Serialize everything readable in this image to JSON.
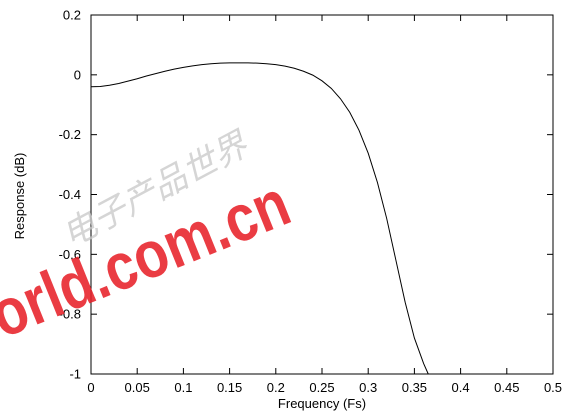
{
  "chart_data": {
    "type": "line",
    "title": "",
    "xlabel": "Frequency (Fs)",
    "ylabel": "Response (dB)",
    "xlim": [
      0,
      0.5
    ],
    "ylim": [
      -1,
      0.2
    ],
    "xticks": [
      0,
      0.05,
      0.1,
      0.15,
      0.2,
      0.25,
      0.3,
      0.35,
      0.4,
      0.45,
      0.5
    ],
    "xtick_labels": [
      "0",
      "0.05",
      "0.1",
      "0.15",
      "0.2",
      "0.25",
      "0.3",
      "0.35",
      "0.4",
      "0.45",
      "0.5"
    ],
    "yticks": [
      -1,
      -0.8,
      -0.6,
      -0.4,
      -0.2,
      0,
      0.2
    ],
    "ytick_labels": [
      "-1",
      "-0.8",
      "-0.6",
      "-0.4",
      "-0.2",
      "0",
      "0.2"
    ],
    "grid": false,
    "legend": "none",
    "line_color": "#000000",
    "series": [
      {
        "x": [
          0,
          0.01,
          0.02,
          0.03,
          0.04,
          0.05,
          0.06,
          0.07,
          0.08,
          0.09,
          0.1,
          0.11,
          0.12,
          0.13,
          0.14,
          0.15,
          0.16,
          0.17,
          0.18,
          0.19,
          0.2,
          0.21,
          0.22,
          0.23,
          0.24,
          0.25,
          0.26,
          0.27,
          0.28,
          0.29,
          0.3,
          0.31,
          0.32,
          0.33,
          0.34,
          0.35,
          0.36,
          0.365
        ],
        "y": [
          -0.04,
          -0.039,
          -0.035,
          -0.029,
          -0.021,
          -0.013,
          -0.004,
          0.004,
          0.012,
          0.019,
          0.025,
          0.03,
          0.034,
          0.037,
          0.039,
          0.04,
          0.04,
          0.04,
          0.039,
          0.037,
          0.034,
          0.029,
          0.022,
          0.012,
          -0.001,
          -0.02,
          -0.045,
          -0.08,
          -0.125,
          -0.185,
          -0.262,
          -0.36,
          -0.48,
          -0.62,
          -0.76,
          -0.88,
          -0.965,
          -1.0
        ]
      }
    ]
  },
  "watermark": {
    "cjk_text": "电子产品世界",
    "domain_text": "eeworld.com.cn",
    "colors": {
      "cjk": "#c8c8c8",
      "domain": "#e8222a"
    }
  }
}
